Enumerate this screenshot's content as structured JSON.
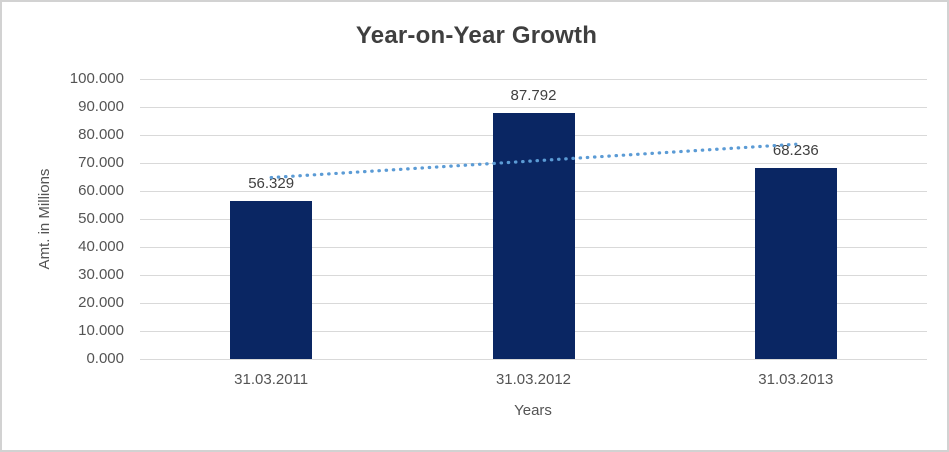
{
  "chart_data": {
    "type": "bar",
    "title": "Year-on-Year Growth",
    "xlabel": "Years",
    "ylabel": "Amt. in Millions",
    "categories": [
      "31.03.2011",
      "31.03.2012",
      "31.03.2013"
    ],
    "values": [
      56.329,
      87.792,
      68.236
    ],
    "data_labels": [
      "56.329",
      "87.792",
      "68.236"
    ],
    "y_ticks": [
      "100.000",
      "90.000",
      "80.000",
      "70.000",
      "60.000",
      "50.000",
      "40.000",
      "30.000",
      "20.000",
      "10.000",
      "0.000"
    ],
    "ylim": [
      0,
      100
    ],
    "grid": "horizontal",
    "legend": "none",
    "bar_color": "#0a2663",
    "trendline": {
      "type": "linear",
      "style": "dotted",
      "color": "#5b9bd5",
      "start_value": 64.8,
      "end_value": 76.7
    },
    "colors": {
      "gridline": "#d9d9d9",
      "tick_text": "#545454",
      "title_text": "#3f3f3f",
      "label_text": "#404040",
      "frame_border": "#d2d2d2",
      "background": "#ffffff"
    }
  }
}
